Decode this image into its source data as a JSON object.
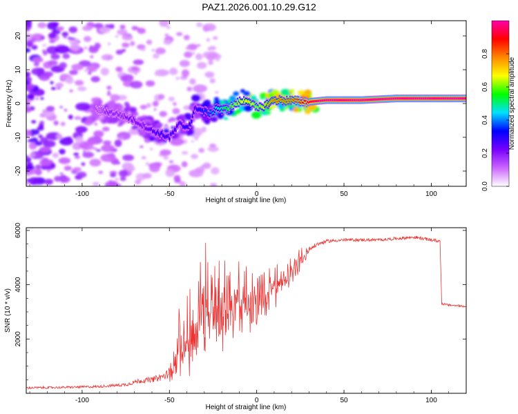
{
  "figure": {
    "title": "PAZ1.2026.001.10.29.G12"
  },
  "chart_data": [
    {
      "type": "heatmap",
      "title": "PAZ1.2026.001.10.29.G12",
      "xlabel": "Height of straight line (km)",
      "ylabel": "Frequency (Hz)",
      "xlim": [
        -132,
        120
      ],
      "ylim": [
        -24.5,
        24.5
      ],
      "xticks": [
        -100,
        -50,
        0,
        50,
        100
      ],
      "yticks": [
        -20,
        -10,
        0,
        10,
        20
      ],
      "ridge": {
        "x": [
          -90,
          -85,
          -80,
          -75,
          -70,
          -65,
          -60,
          -55,
          -50,
          -47,
          -44,
          -41,
          -38,
          -35,
          -32,
          -29,
          -26,
          -23,
          -20,
          -15,
          -10,
          -5,
          0,
          5,
          10,
          20,
          30,
          40,
          60,
          80,
          100,
          120
        ],
        "frequency": [
          -2,
          -2.5,
          -3,
          -4,
          -5,
          -6.5,
          -8,
          -9,
          -10,
          -8,
          -6,
          -7,
          -6,
          -1,
          -2,
          -2.5,
          -3,
          -1,
          -2,
          -1,
          0.5,
          1,
          -1.5,
          -0.5,
          1,
          0.8,
          0.5,
          1,
          1,
          1.5,
          1.5,
          1.5
        ],
        "amplitude": [
          0.15,
          0.2,
          0.18,
          0.2,
          0.22,
          0.22,
          0.25,
          0.3,
          0.28,
          0.3,
          0.25,
          0.3,
          0.3,
          0.28,
          0.35,
          0.35,
          0.4,
          0.45,
          0.5,
          0.6,
          0.65,
          0.7,
          0.6,
          0.7,
          0.8,
          0.8,
          0.95,
          1.0,
          1.0,
          1.0,
          1.0,
          1.0
        ]
      },
      "colorbar": {
        "label": "Normalized spectral amplitude",
        "range": [
          0.0,
          1.0
        ],
        "ticks": [
          "0.0",
          "0.2",
          "0.4",
          "0.6",
          "0.8"
        ],
        "colors": [
          "#ffffff",
          "#cc66ff",
          "#7700ff",
          "#0000ff",
          "#00e0ff",
          "#00ff00",
          "#ffff00",
          "#ff8800",
          "#ff0000",
          "#ff00aa"
        ]
      }
    },
    {
      "type": "line",
      "xlabel": "Height of straight line (km)",
      "ylabel": "SNR (10 * v/v)",
      "xlim": [
        -132,
        120
      ],
      "ylim": [
        0,
        6100
      ],
      "xticks": [
        -100,
        -50,
        0,
        50,
        100
      ],
      "yticks": [
        2000,
        4000,
        6000
      ],
      "color": "#ee3333",
      "series": [
        {
          "name": "SNR",
          "x": [
            -132,
            -110,
            -90,
            -75,
            -68,
            -60,
            -52,
            -48,
            -44,
            -40,
            -36,
            -32,
            -28,
            -24,
            -20,
            -15,
            -10,
            -5,
            0,
            5,
            10,
            15,
            20,
            25,
            30,
            35,
            40,
            50,
            60,
            70,
            80,
            90,
            100,
            105,
            106,
            110,
            120
          ],
          "value": [
            200,
            220,
            250,
            320,
            450,
            500,
            650,
            1000,
            1500,
            1900,
            2300,
            2500,
            2700,
            2800,
            2900,
            3100,
            3300,
            3400,
            3500,
            3700,
            3900,
            4100,
            4400,
            4900,
            5300,
            5500,
            5600,
            5650,
            5650,
            5650,
            5700,
            5750,
            5650,
            5600,
            3300,
            3250,
            3200
          ],
          "noise": [
            80,
            80,
            90,
            120,
            180,
            200,
            300,
            600,
            1000,
            1200,
            1400,
            1500,
            1500,
            1400,
            1300,
            1100,
            1000,
            900,
            800,
            700,
            600,
            500,
            400,
            300,
            200,
            150,
            120,
            110,
            110,
            110,
            110,
            120,
            120,
            120,
            80,
            80,
            80
          ]
        }
      ]
    }
  ]
}
